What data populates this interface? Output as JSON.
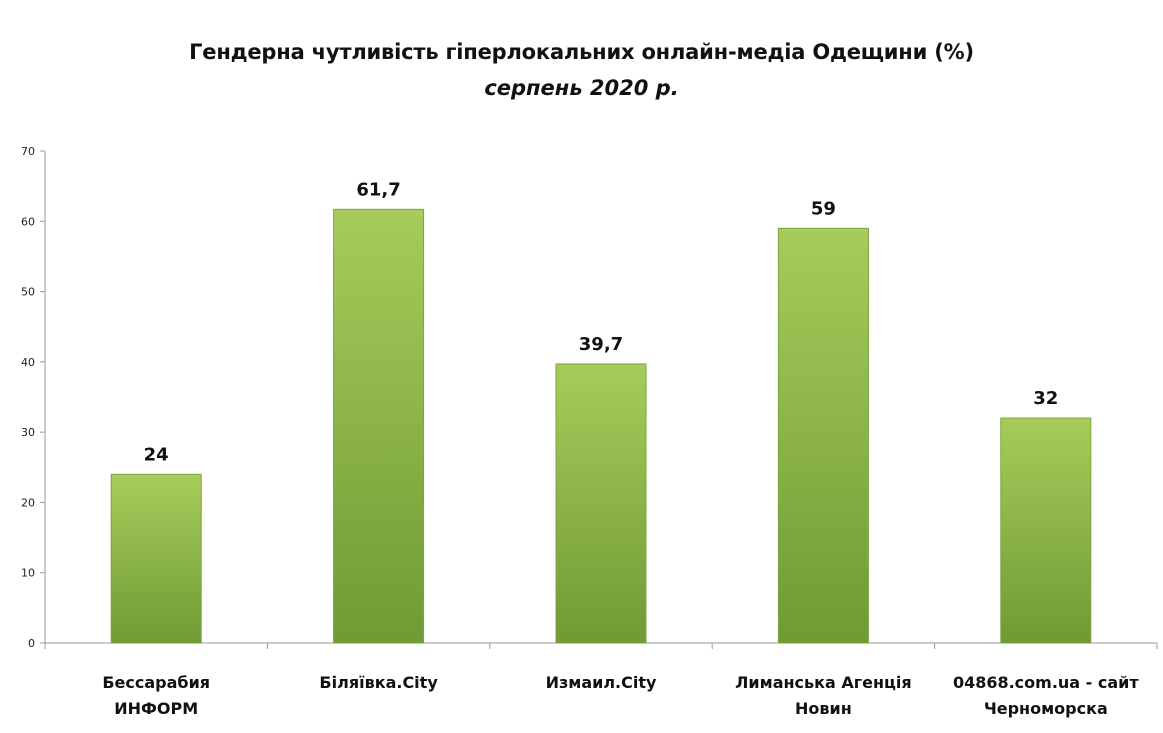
{
  "chart_data": {
    "type": "bar",
    "title": "Гендерна чутливість гіперлокальних онлайн-медіа Одещини (%)",
    "subtitle": "серпень 2020 р.",
    "categories": [
      [
        "Бессарабия",
        "ИНФОРМ"
      ],
      [
        "Біляївка.City"
      ],
      [
        "Измаил.City"
      ],
      [
        "Лиманська Агенція",
        "Новин"
      ],
      [
        "04868.com.ua - сайт",
        "Черноморска"
      ]
    ],
    "values": [
      24,
      61.7,
      39.7,
      59,
      32
    ],
    "data_labels": [
      "24",
      "61,7",
      "39,7",
      "59",
      "32"
    ],
    "ylim": [
      0,
      70
    ],
    "yticks": [
      0,
      10,
      20,
      30,
      40,
      50,
      60,
      70
    ],
    "grid": false,
    "legend": "none",
    "colors": {
      "bar_top": "#a6cc5a",
      "bar_bottom": "#6f9a35",
      "bar_edge": "#7da33d",
      "axis": "#9a9a9a"
    }
  }
}
